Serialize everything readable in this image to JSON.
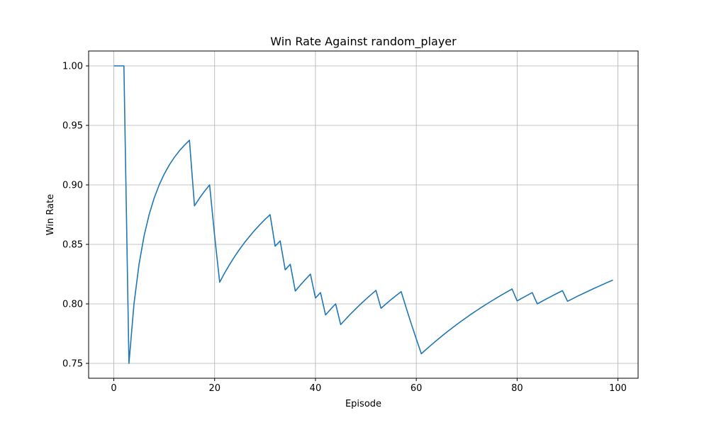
{
  "chart_data": {
    "type": "line",
    "title": "Win Rate Against random_player",
    "xlabel": "Episode",
    "ylabel": "Win Rate",
    "xlim": [
      -5,
      104
    ],
    "ylim": [
      0.7375,
      1.0125
    ],
    "xticks": [
      0,
      20,
      40,
      60,
      80,
      100
    ],
    "yticks": [
      0.75,
      0.8,
      0.85,
      0.9,
      0.95,
      1.0
    ],
    "xtick_labels": [
      "0",
      "20",
      "40",
      "60",
      "80",
      "100"
    ],
    "ytick_labels": [
      "0.75",
      "0.80",
      "0.85",
      "0.90",
      "0.95",
      "1.00"
    ],
    "grid": true,
    "series": [
      {
        "color": "#1f77b4",
        "x": [
          0,
          1,
          2,
          3,
          4,
          5,
          6,
          7,
          8,
          9,
          10,
          11,
          12,
          13,
          14,
          15,
          16,
          17,
          18,
          19,
          20,
          21,
          22,
          23,
          24,
          25,
          26,
          27,
          28,
          29,
          30,
          31,
          32,
          33,
          34,
          35,
          36,
          37,
          38,
          39,
          40,
          41,
          42,
          43,
          44,
          45,
          46,
          47,
          48,
          49,
          50,
          51,
          52,
          53,
          54,
          55,
          56,
          57,
          58,
          59,
          60,
          61,
          62,
          63,
          64,
          65,
          66,
          67,
          68,
          69,
          70,
          71,
          72,
          73,
          74,
          75,
          76,
          77,
          78,
          79,
          80,
          81,
          82,
          83,
          84,
          85,
          86,
          87,
          88,
          89,
          90,
          91,
          92,
          93,
          94,
          95,
          96,
          97,
          98,
          99
        ],
        "y": [
          1.0,
          1.0,
          1.0,
          0.75,
          0.8,
          0.8333,
          0.8571,
          0.875,
          0.8889,
          0.9,
          0.9091,
          0.9167,
          0.9231,
          0.9286,
          0.9333,
          0.9375,
          0.8824,
          0.8889,
          0.8947,
          0.9,
          0.8571,
          0.8182,
          0.8261,
          0.8333,
          0.84,
          0.8462,
          0.8519,
          0.8571,
          0.8621,
          0.8667,
          0.871,
          0.875,
          0.8485,
          0.8529,
          0.8286,
          0.8333,
          0.8108,
          0.8158,
          0.8205,
          0.825,
          0.8049,
          0.8095,
          0.7907,
          0.7955,
          0.8,
          0.7826,
          0.7872,
          0.7917,
          0.7959,
          0.8,
          0.8039,
          0.8077,
          0.8113,
          0.7963,
          0.8,
          0.8036,
          0.807,
          0.8103,
          0.7966,
          0.7833,
          0.7705,
          0.7581,
          0.7619,
          0.7656,
          0.7692,
          0.7727,
          0.7761,
          0.7794,
          0.7826,
          0.7857,
          0.7887,
          0.7917,
          0.7945,
          0.7973,
          0.8,
          0.8026,
          0.8052,
          0.8077,
          0.8101,
          0.8125,
          0.8025,
          0.8049,
          0.8072,
          0.8095,
          0.8,
          0.8023,
          0.8046,
          0.8068,
          0.809,
          0.8111,
          0.8022,
          0.8043,
          0.8065,
          0.8085,
          0.8105,
          0.8125,
          0.8144,
          0.8163,
          0.8182,
          0.82
        ]
      }
    ]
  }
}
